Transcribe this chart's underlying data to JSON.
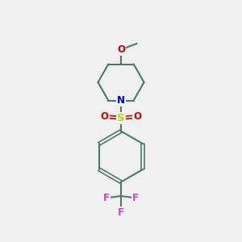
{
  "background_color": "#f0f0f0",
  "bond_color": "#4a7a6a",
  "n_color": "#0000cc",
  "o_color": "#cc0000",
  "s_color": "#cccc00",
  "f_color": "#cc44cc",
  "line_width": 1.5,
  "figsize": [
    3.0,
    3.0
  ],
  "dpi": 100,
  "xlim": [
    0,
    10
  ],
  "ylim": [
    0,
    10
  ]
}
